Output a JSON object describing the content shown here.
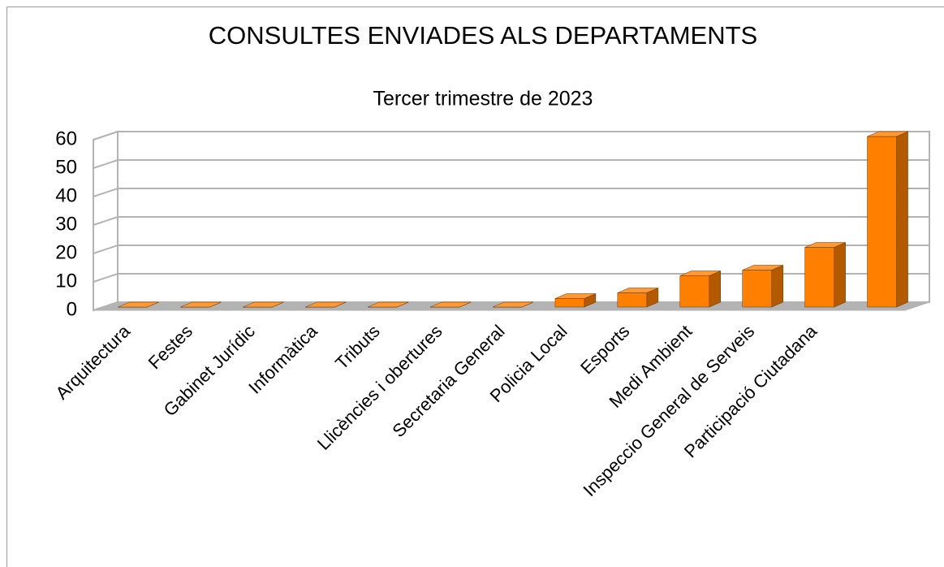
{
  "chart_data": {
    "type": "bar3d",
    "title": "CONSULTES ENVIADES ALS DEPARTAMENTS",
    "subtitle": "Tercer trimestre de 2023",
    "categories": [
      "Arquitectura",
      "Festes",
      "Gabinet Jurídic",
      "Informàtica",
      "Tributs",
      "Llicències i obertures",
      "Secretaria General",
      "Policia Local",
      "Esports",
      "Medi Ambient",
      "Inspeccio General de Serveis",
      "Participació Ciutadana",
      null
    ],
    "values": [
      0,
      0,
      0,
      0,
      0,
      0,
      0,
      3,
      5,
      11,
      13,
      21,
      60
    ],
    "color": "#ff8000",
    "ylim": [
      0,
      60
    ],
    "yticks": [
      0,
      10,
      20,
      30,
      40,
      50,
      60
    ],
    "grid": true
  }
}
